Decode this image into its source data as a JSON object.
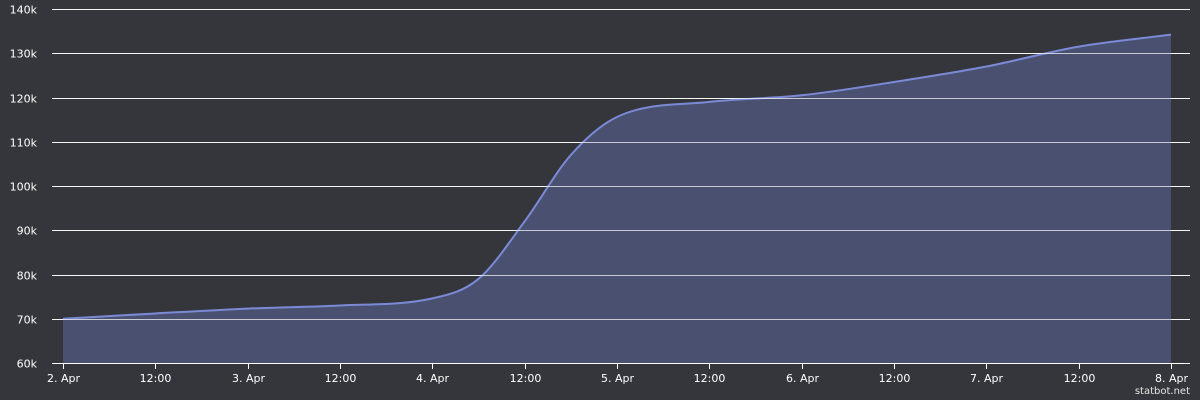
{
  "credit": "statbot.net",
  "colors": {
    "background": "#35363c",
    "line": "#7b8ad6",
    "fill": "#4a5170",
    "grid": "#ffffff",
    "text": "#ffffff"
  },
  "chart_data": {
    "type": "area",
    "title": "",
    "xlabel": "",
    "ylabel": "",
    "grid": true,
    "legend": false,
    "ylim": [
      60000,
      140000
    ],
    "y_ticks": [
      {
        "value": 60000,
        "label": "60k"
      },
      {
        "value": 70000,
        "label": "70k"
      },
      {
        "value": 80000,
        "label": "80k"
      },
      {
        "value": 90000,
        "label": "90k"
      },
      {
        "value": 100000,
        "label": "100k"
      },
      {
        "value": 110000,
        "label": "110k"
      },
      {
        "value": 120000,
        "label": "120k"
      },
      {
        "value": 130000,
        "label": "130k"
      },
      {
        "value": 140000,
        "label": "140k"
      }
    ],
    "x_range": [
      "2. Apr 00:00",
      "8. Apr 00:00"
    ],
    "x_ticks": [
      {
        "x": "2. Apr 00:00",
        "label": "2. Apr"
      },
      {
        "x": "2. Apr 12:00",
        "label": "12:00"
      },
      {
        "x": "3. Apr 00:00",
        "label": "3. Apr"
      },
      {
        "x": "3. Apr 12:00",
        "label": "12:00"
      },
      {
        "x": "4. Apr 00:00",
        "label": "4. Apr"
      },
      {
        "x": "4. Apr 12:00",
        "label": "12:00"
      },
      {
        "x": "5. Apr 00:00",
        "label": "5. Apr"
      },
      {
        "x": "5. Apr 12:00",
        "label": "12:00"
      },
      {
        "x": "6. Apr 00:00",
        "label": "6. Apr"
      },
      {
        "x": "6. Apr 12:00",
        "label": "12:00"
      },
      {
        "x": "7. Apr 00:00",
        "label": "7. Apr"
      },
      {
        "x": "7. Apr 12:00",
        "label": "12:00"
      },
      {
        "x": "8. Apr 00:00",
        "label": "8. Apr"
      }
    ],
    "series": [
      {
        "points": [
          {
            "x": "2. Apr 00:00",
            "y": 70000
          },
          {
            "x": "2. Apr 12:00",
            "y": 71200
          },
          {
            "x": "3. Apr 00:00",
            "y": 72300
          },
          {
            "x": "3. Apr 12:00",
            "y": 73000
          },
          {
            "x": "4. Apr 00:00",
            "y": 74600
          },
          {
            "x": "4. Apr 06:00",
            "y": 79000
          },
          {
            "x": "4. Apr 12:00",
            "y": 92000
          },
          {
            "x": "4. Apr 18:00",
            "y": 107000
          },
          {
            "x": "5. Apr 00:00",
            "y": 115600
          },
          {
            "x": "5. Apr 12:00",
            "y": 119000
          },
          {
            "x": "6. Apr 00:00",
            "y": 120500
          },
          {
            "x": "6. Apr 12:00",
            "y": 123500
          },
          {
            "x": "7. Apr 00:00",
            "y": 127000
          },
          {
            "x": "7. Apr 12:00",
            "y": 131500
          },
          {
            "x": "8. Apr 00:00",
            "y": 134200
          }
        ]
      }
    ]
  }
}
